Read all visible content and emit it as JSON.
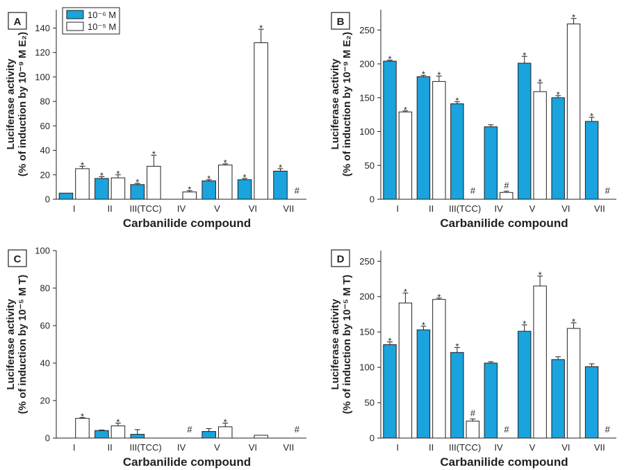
{
  "colors": {
    "low": "#1aa3dc",
    "high": "#ffffff",
    "stroke": "#231f20"
  },
  "legend": {
    "low": "10⁻⁶ M",
    "high": "10⁻⁵ M"
  },
  "chart_data": [
    {
      "type": "bar",
      "panel": "A",
      "categories": [
        "I",
        "II",
        "III(TCC)",
        "IV",
        "V",
        "VI",
        "VII"
      ],
      "xlabel": "Carbanilide compound",
      "ylabel_line1": "Luciferase activity",
      "ylabel_line2": "(% of induction by 10⁻⁹ M E₂)",
      "ylim": [
        0,
        155
      ],
      "yticks": [
        0,
        20,
        40,
        60,
        80,
        100,
        120,
        140
      ],
      "series": [
        {
          "name": "10⁻⁶ M",
          "values": [
            5,
            17,
            12,
            0,
            15,
            16,
            23
          ],
          "errors": [
            0,
            1.5,
            1,
            0,
            1,
            1,
            2
          ],
          "marks": [
            "",
            "*",
            "*",
            "",
            "*",
            "*",
            "*"
          ]
        },
        {
          "name": "10⁻⁵ M",
          "values": [
            25,
            17.5,
            27,
            6,
            28,
            128,
            null
          ],
          "errors": [
            2,
            2.5,
            9,
            1,
            1,
            11,
            0
          ],
          "marks": [
            "*",
            "*",
            "*",
            "*",
            "*",
            "*",
            "#"
          ]
        }
      ]
    },
    {
      "type": "bar",
      "panel": "B",
      "categories": [
        "I",
        "II",
        "III(TCC)",
        "IV",
        "V",
        "VI",
        "VII"
      ],
      "xlabel": "Carbanilide compound",
      "ylabel_line1": "Luciferase activity",
      "ylabel_line2": "(% of induction by 10⁻⁹ M E₂)",
      "ylim": [
        0,
        280
      ],
      "yticks": [
        0,
        50,
        100,
        150,
        200,
        250
      ],
      "series": [
        {
          "name": "10⁻⁶ M",
          "values": [
            204,
            181,
            141,
            107,
            201,
            150,
            115
          ],
          "errors": [
            1.5,
            2,
            3,
            3,
            10,
            3,
            6
          ],
          "marks": [
            "*",
            "*",
            "*",
            "",
            "*",
            "*",
            "*"
          ]
        },
        {
          "name": "10⁻⁵ M",
          "values": [
            129,
            174,
            null,
            10,
            159,
            259,
            null
          ],
          "errors": [
            1.5,
            8,
            0,
            2,
            13,
            8,
            0
          ],
          "marks": [
            "*",
            "*",
            "#",
            "#",
            "*",
            "*",
            "#"
          ]
        }
      ]
    },
    {
      "type": "bar",
      "panel": "C",
      "categories": [
        "I",
        "II",
        "III(TCC)",
        "IV",
        "V",
        "VI",
        "VII"
      ],
      "xlabel": "Carbanilide compound",
      "ylabel_line1": "Luciferase activity",
      "ylabel_line2": "(% of induction by 10⁻⁵ M T)",
      "ylim": [
        0,
        100
      ],
      "yticks": [
        0,
        20,
        40,
        60,
        80,
        100
      ],
      "series": [
        {
          "name": "10⁻⁶ M",
          "values": [
            0,
            4,
            2,
            0,
            3.5,
            0,
            0
          ],
          "errors": [
            0,
            0.3,
            2.5,
            0,
            1.5,
            0,
            0
          ],
          "marks": [
            "",
            "",
            "",
            "",
            "",
            "",
            ""
          ]
        },
        {
          "name": "10⁻⁵ M",
          "values": [
            10.5,
            6.5,
            null,
            null,
            6,
            1.5,
            null
          ],
          "errors": [
            0.4,
            1.5,
            0,
            0,
            2,
            0,
            0
          ],
          "marks": [
            "*",
            "*",
            "",
            "#",
            "*",
            "",
            "#"
          ]
        }
      ]
    },
    {
      "type": "bar",
      "panel": "D",
      "categories": [
        "I",
        "II",
        "III(TCC)",
        "IV",
        "V",
        "VI",
        "VII"
      ],
      "xlabel": "Carbanilide compound",
      "ylabel_line1": "Luciferase activity",
      "ylabel_line2": "(% of induction by 10⁻⁵ M T)",
      "ylim": [
        0,
        265
      ],
      "yticks": [
        0,
        50,
        100,
        150,
        200,
        250
      ],
      "series": [
        {
          "name": "10⁻⁶ M",
          "values": [
            132,
            153,
            121,
            106,
            151,
            111,
            101
          ],
          "errors": [
            4,
            5,
            7,
            2,
            9,
            4,
            4
          ],
          "marks": [
            "*",
            "*",
            "*",
            "",
            "*",
            "",
            ""
          ]
        },
        {
          "name": "10⁻⁵ M",
          "values": [
            191,
            196,
            24,
            null,
            215,
            155,
            null
          ],
          "errors": [
            14,
            2,
            3,
            0,
            14,
            8,
            0
          ],
          "marks": [
            "*",
            "*",
            "#",
            "#",
            "*",
            "*",
            "#"
          ]
        }
      ]
    }
  ]
}
